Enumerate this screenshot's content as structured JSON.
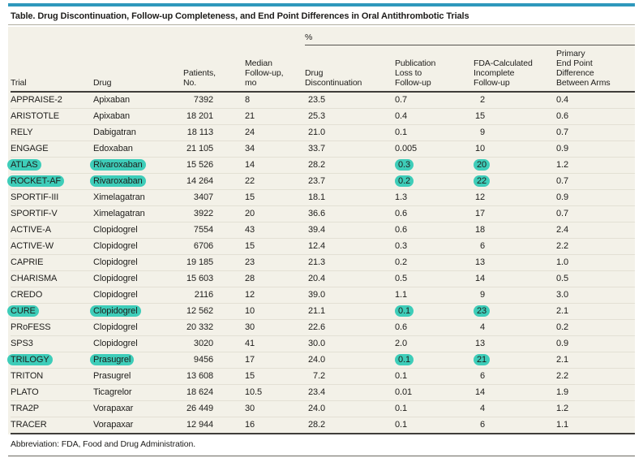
{
  "title": "Table. Drug Discontinuation, Follow-up Completeness, and End Point Differences in Oral Antithrombotic Trials",
  "header": {
    "percent_spanner": "%",
    "columns": [
      {
        "key": "trial",
        "label": "Trial"
      },
      {
        "key": "drug",
        "label": "Drug"
      },
      {
        "key": "patients",
        "label": "Patients,\nNo."
      },
      {
        "key": "median",
        "label": "Median\nFollow-up,\nmo"
      },
      {
        "key": "disc",
        "label": "Drug\nDiscontinuation"
      },
      {
        "key": "pub",
        "label": "Publication\nLoss to\nFollow-up"
      },
      {
        "key": "fda",
        "label": "FDA-Calculated\nIncomplete\nFollow-up"
      },
      {
        "key": "primary",
        "label": "Primary\nEnd Point\nDifference\nBetween Arms"
      }
    ]
  },
  "rows": [
    {
      "trial": "APPRAISE-2",
      "drug": "Apixaban",
      "patients": "7392",
      "median": "8",
      "disc": "23.5",
      "pub": "0.7",
      "fda": "2",
      "primary": "0.4",
      "highlights": []
    },
    {
      "trial": "ARISTOTLE",
      "drug": "Apixaban",
      "patients": "18 201",
      "median": "21",
      "disc": "25.3",
      "pub": "0.4",
      "fda": "15",
      "primary": "0.6",
      "highlights": []
    },
    {
      "trial": "RELY",
      "drug": "Dabigatran",
      "patients": "18 113",
      "median": "24",
      "disc": "21.0",
      "pub": "0.1",
      "fda": "9",
      "primary": "0.7",
      "highlights": []
    },
    {
      "trial": "ENGAGE",
      "drug": "Edoxaban",
      "patients": "21 105",
      "median": "34",
      "disc": "33.7",
      "pub": "0.005",
      "fda": "10",
      "primary": "0.9",
      "highlights": []
    },
    {
      "trial": "ATLAS",
      "drug": "Rivaroxaban",
      "patients": "15 526",
      "median": "14",
      "disc": "28.2",
      "pub": "0.3",
      "fda": "20",
      "primary": "1.2",
      "highlights": [
        "trial",
        "drug",
        "pub",
        "fda"
      ]
    },
    {
      "trial": "ROCKET-AF",
      "drug": "Rivaroxaban",
      "patients": "14 264",
      "median": "22",
      "disc": "23.7",
      "pub": "0.2",
      "fda": "22",
      "primary": "0.7",
      "highlights": [
        "trial",
        "drug",
        "pub",
        "fda"
      ]
    },
    {
      "trial": "SPORTIF-III",
      "drug": "Ximelagatran",
      "patients": "3407",
      "median": "15",
      "disc": "18.1",
      "pub": "1.3",
      "fda": "12",
      "primary": "0.9",
      "highlights": []
    },
    {
      "trial": "SPORTIF-V",
      "drug": "Ximelagatran",
      "patients": "3922",
      "median": "20",
      "disc": "36.6",
      "pub": "0.6",
      "fda": "17",
      "primary": "0.7",
      "highlights": []
    },
    {
      "trial": "ACTIVE-A",
      "drug": "Clopidogrel",
      "patients": "7554",
      "median": "43",
      "disc": "39.4",
      "pub": "0.6",
      "fda": "18",
      "primary": "2.4",
      "highlights": []
    },
    {
      "trial": "ACTIVE-W",
      "drug": "Clopidogrel",
      "patients": "6706",
      "median": "15",
      "disc": "12.4",
      "pub": "0.3",
      "fda": "6",
      "primary": "2.2",
      "highlights": []
    },
    {
      "trial": "CAPRIE",
      "drug": "Clopidogrel",
      "patients": "19 185",
      "median": "23",
      "disc": "21.3",
      "pub": "0.2",
      "fda": "13",
      "primary": "1.0",
      "highlights": []
    },
    {
      "trial": "CHARISMA",
      "drug": "Clopidogrel",
      "patients": "15 603",
      "median": "28",
      "disc": "20.4",
      "pub": "0.5",
      "fda": "14",
      "primary": "0.5",
      "highlights": []
    },
    {
      "trial": "CREDO",
      "drug": "Clopidogrel",
      "patients": "2116",
      "median": "12",
      "disc": "39.0",
      "pub": "1.1",
      "fda": "9",
      "primary": "3.0",
      "highlights": []
    },
    {
      "trial": "CURE",
      "drug": "Clopidogrel",
      "patients": "12 562",
      "median": "10",
      "disc": "21.1",
      "pub": "0.1",
      "fda": "23",
      "primary": "2.1",
      "highlights": [
        "trial",
        "drug",
        "pub",
        "fda"
      ]
    },
    {
      "trial": "PRoFESS",
      "drug": "Clopidogrel",
      "patients": "20 332",
      "median": "30",
      "disc": "22.6",
      "pub": "0.6",
      "fda": "4",
      "primary": "0.2",
      "highlights": []
    },
    {
      "trial": "SPS3",
      "drug": "Clopidogrel",
      "patients": "3020",
      "median": "41",
      "disc": "30.0",
      "pub": "2.0",
      "fda": "13",
      "primary": "0.9",
      "highlights": []
    },
    {
      "trial": "TRILOGY",
      "drug": "Prasugrel",
      "patients": "9456",
      "median": "17",
      "disc": "24.0",
      "pub": "0.1",
      "fda": "21",
      "primary": "2.1",
      "highlights": [
        "trial",
        "drug",
        "pub",
        "fda"
      ]
    },
    {
      "trial": "TRITON",
      "drug": "Prasugrel",
      "patients": "13 608",
      "median": "15",
      "disc": "7.2",
      "pub": "0.1",
      "fda": "6",
      "primary": "2.2",
      "highlights": []
    },
    {
      "trial": "PLATO",
      "drug": "Ticagrelor",
      "patients": "18 624",
      "median": "10.5",
      "disc": "23.4",
      "pub": "0.01",
      "fda": "14",
      "primary": "1.9",
      "highlights": []
    },
    {
      "trial": "TRA2P",
      "drug": "Vorapaxar",
      "patients": "26 449",
      "median": "30",
      "disc": "24.0",
      "pub": "0.1",
      "fda": "4",
      "primary": "1.2",
      "highlights": []
    },
    {
      "trial": "TRACER",
      "drug": "Vorapaxar",
      "patients": "12 944",
      "median": "16",
      "disc": "28.2",
      "pub": "0.1",
      "fda": "6",
      "primary": "1.1",
      "highlights": []
    }
  ],
  "footnote": "Abbreviation: FDA, Food and Drug Administration.",
  "colors": {
    "accent_bar": "#2f98bc",
    "highlight": "#3ecdb9",
    "panel_background": "#f3f1e8",
    "text": "#1e1d1b"
  }
}
